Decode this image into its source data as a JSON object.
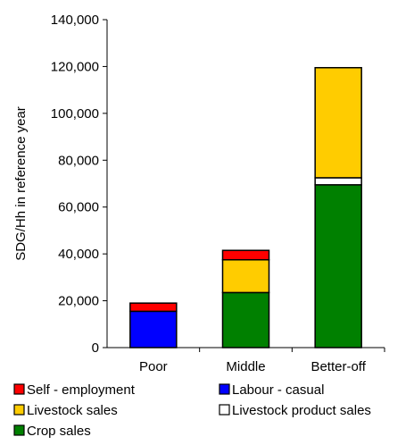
{
  "chart_data": {
    "type": "bar",
    "stacked": true,
    "title": "",
    "xlabel": "",
    "ylabel": "SDG/Hh in reference year",
    "ylim": [
      0,
      140000
    ],
    "ytick_step": 20000,
    "yticks": [
      "0",
      "20,000",
      "40,000",
      "60,000",
      "80,000",
      "100,000",
      "120,000",
      "140,000"
    ],
    "categories": [
      "Poor",
      "Middle",
      "Better-off"
    ],
    "grid": false,
    "legend_position": "bottom",
    "series": [
      {
        "name": "Crop sales",
        "color": "#008000",
        "values": [
          0,
          23500,
          69500
        ]
      },
      {
        "name": "Labour - casual",
        "color": "#0000FF",
        "values": [
          15500,
          0,
          0
        ]
      },
      {
        "name": "Livestock product sales",
        "color": "#FFFFFF",
        "values": [
          0,
          0,
          3000
        ]
      },
      {
        "name": "Livestock sales",
        "color": "#FFCC00",
        "values": [
          0,
          14000,
          47000
        ]
      },
      {
        "name": "Self - employment",
        "color": "#FF0000",
        "values": [
          3500,
          4000,
          0
        ]
      }
    ],
    "legend_order": [
      "Self - employment",
      "Labour - casual",
      "Livestock sales",
      "Livestock product sales",
      "Crop sales"
    ]
  }
}
